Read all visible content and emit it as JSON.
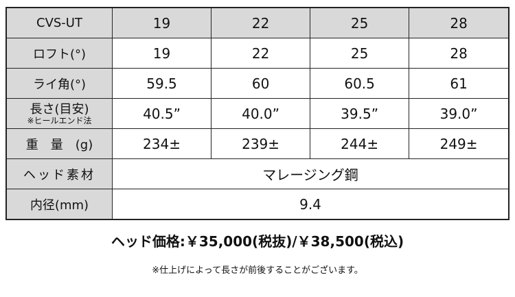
{
  "table": {
    "header": [
      "CVS-UT",
      "19",
      "22",
      "25",
      "28"
    ],
    "rows": [
      {
        "label": "ロフト(°)",
        "values": [
          "19",
          "22",
          "25",
          "28"
        ]
      },
      {
        "label": "ライ角(°)",
        "values": [
          "59.5",
          "60",
          "60.5",
          "61"
        ]
      },
      {
        "label": "長さ(目安)",
        "sublabel": "※ヒールエンド法",
        "values": [
          "40.5”",
          "40.0”",
          "39.5”",
          "39.0”"
        ]
      },
      {
        "label": "重　量　(g)",
        "values": [
          "234±",
          "239±",
          "244±",
          "249±"
        ]
      }
    ],
    "head_material": {
      "label": "ヘッド素材",
      "value": "マレージング鋼"
    },
    "inner_diameter": {
      "label": "内径(mm)",
      "value": "9.4"
    }
  },
  "price": "ヘッド価格:￥35,000(税抜)/￥38,500(税込)",
  "note": "※仕上げによって長さが前後することがございます。",
  "colors": {
    "label_bg": "#d9d9d9",
    "border": "#222222"
  }
}
